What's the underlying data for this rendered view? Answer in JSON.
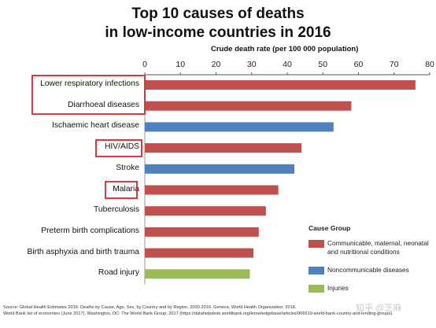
{
  "chart_data": {
    "type": "bar",
    "orientation": "horizontal",
    "title": [
      "Top 10 causes of deaths",
      "in low-income countries in 2016"
    ],
    "xlabel": "Crude death rate (per 100 000 population)",
    "xlim": [
      0,
      80
    ],
    "xticks": [
      0,
      10,
      20,
      30,
      40,
      50,
      60,
      70,
      80
    ],
    "gridlines": false,
    "legend_position": "bottom-right",
    "categories": [
      "Lower respiratory infections",
      "Diarrhoeal diseases",
      "Ischaemic heart disease",
      "HIV/AIDS",
      "Stroke",
      "Malaria",
      "Tuberculosis",
      "Preterm birth complications",
      "Birth asphyxia and birth trauma",
      "Road injury"
    ],
    "values": [
      76,
      58,
      53,
      44,
      42,
      37.5,
      34,
      32,
      30.5,
      29.5
    ],
    "groups": [
      "Communicable, maternal, neonatal and nutritional conditions",
      "Communicable, maternal, neonatal and nutritional conditions",
      "Noncommunicable diseases",
      "Communicable, maternal, neonatal and nutritional conditions",
      "Noncommunicable diseases",
      "Communicable, maternal, neonatal and nutritional conditions",
      "Communicable, maternal, neonatal and nutritional conditions",
      "Communicable, maternal, neonatal and nutritional conditions",
      "Communicable, maternal, neonatal and nutritional conditions",
      "Injuries"
    ],
    "highlighted": [
      "Lower respiratory infections",
      "Diarrhoeal diseases",
      "HIV/AIDS",
      "Malaria"
    ],
    "legend": {
      "title": "Cause Group",
      "entries": [
        {
          "label": "Communicable, maternal, neonatal and nutritional conditions",
          "color": "#c0504d"
        },
        {
          "label": "Noncommunicable diseases",
          "color": "#4f81bd"
        },
        {
          "label": "Injuries",
          "color": "#9bbb59"
        }
      ]
    }
  },
  "colors": {
    "communicable": "#c0504d",
    "noncommunicable": "#4f81bd",
    "injuries": "#9bbb59",
    "highlight_box": "#d9363e"
  },
  "source": {
    "line1": "Source: Global Health Estimates 2016: Deaths by Cause, Age, Sex, by Country and by Region, 2000-2016. Geneva, World Health Organization; 2018.",
    "line2": "World Bank list of economies (June 2017). Washington, DC: The World Bank Group; 2017 (https://datahelpdesk.worldbank.org/knowledgebase/articles/906519-world-bank-country-and-lending-groups)."
  },
  "watermark": "知乎 @芝麻"
}
